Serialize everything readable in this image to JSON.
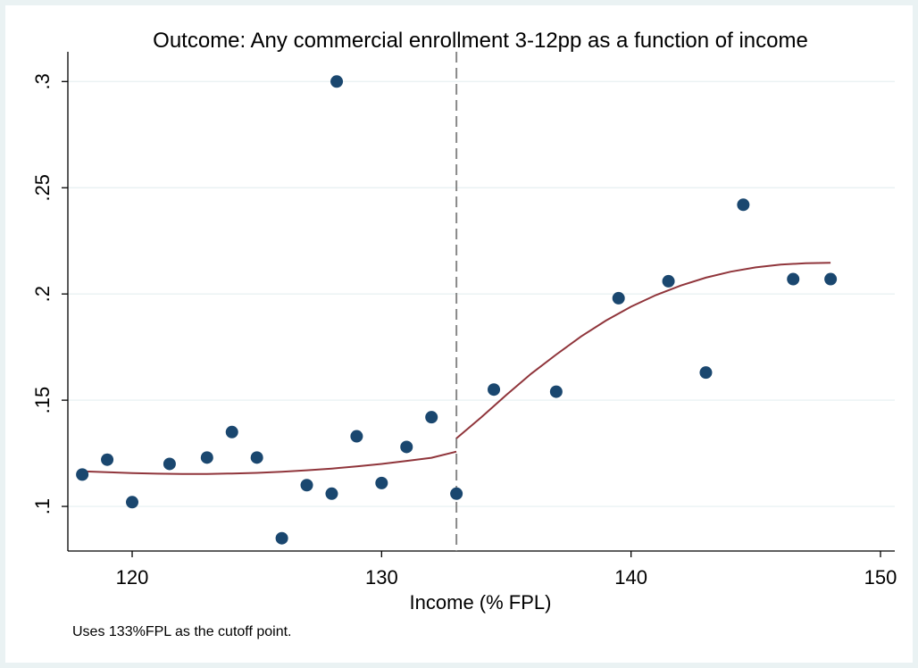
{
  "chart_data": {
    "type": "scatter",
    "title": "Outcome: Any commercial enrollment 3-12pp as a function of income",
    "xlabel": "Income (% FPL)",
    "ylabel": "",
    "note": "Uses 133%FPL as the cutoff point.",
    "xlim": [
      118,
      151
    ],
    "ylim": [
      0.079,
      0.314
    ],
    "x_ticks": [
      120,
      130,
      140,
      150
    ],
    "x_tick_labels": [
      "120",
      "130",
      "140",
      "150"
    ],
    "y_ticks": [
      0.1,
      0.15,
      0.2,
      0.25,
      0.3
    ],
    "y_tick_labels": [
      ".1",
      ".15",
      ".2",
      ".25",
      ".3"
    ],
    "grid": true,
    "cutoff": 133,
    "colors": {
      "points": "#1a476f",
      "fit": "#90353b",
      "cutoff": "#888888",
      "grid": "#eaf2f3"
    },
    "series": [
      {
        "points": [
          [
            118.0,
            0.115
          ],
          [
            119.0,
            0.122
          ],
          [
            120.0,
            0.102
          ],
          [
            121.5,
            0.12
          ],
          [
            123.0,
            0.123
          ],
          [
            124.0,
            0.135
          ],
          [
            125.0,
            0.123
          ],
          [
            126.0,
            0.085
          ],
          [
            127.0,
            0.11
          ],
          [
            128.0,
            0.106
          ],
          [
            128.2,
            0.3
          ],
          [
            129.0,
            0.133
          ],
          [
            130.0,
            0.111
          ],
          [
            131.0,
            0.128
          ],
          [
            132.0,
            0.142
          ],
          [
            133.0,
            0.106
          ],
          [
            134.5,
            0.155
          ],
          [
            137.0,
            0.154
          ],
          [
            139.5,
            0.198
          ],
          [
            141.5,
            0.206
          ],
          [
            143.0,
            0.163
          ],
          [
            144.5,
            0.242
          ],
          [
            146.5,
            0.207
          ],
          [
            148.0,
            0.207
          ]
        ]
      },
      {
        "type": "line",
        "points": [
          [
            118.0,
            0.1165
          ],
          [
            119.0,
            0.1161
          ],
          [
            120.0,
            0.1157
          ],
          [
            121.0,
            0.1154
          ],
          [
            122.0,
            0.1153
          ],
          [
            123.0,
            0.1153
          ],
          [
            124.0,
            0.1155
          ],
          [
            125.0,
            0.1158
          ],
          [
            126.0,
            0.1163
          ],
          [
            127.0,
            0.117
          ],
          [
            128.0,
            0.1178
          ],
          [
            129.0,
            0.1188
          ],
          [
            130.0,
            0.12
          ],
          [
            131.0,
            0.1214
          ],
          [
            132.0,
            0.1229
          ],
          [
            133.0,
            0.1258
          ]
        ]
      },
      {
        "type": "line",
        "points": [
          [
            133.0,
            0.132
          ],
          [
            134.0,
            0.142
          ],
          [
            135.0,
            0.1525
          ],
          [
            136.0,
            0.1625
          ],
          [
            137.0,
            0.1715
          ],
          [
            138.0,
            0.18
          ],
          [
            139.0,
            0.1875
          ],
          [
            140.0,
            0.194
          ],
          [
            141.0,
            0.1995
          ],
          [
            142.0,
            0.204
          ],
          [
            143.0,
            0.2077
          ],
          [
            144.0,
            0.2105
          ],
          [
            145.0,
            0.2125
          ],
          [
            146.0,
            0.2138
          ],
          [
            147.0,
            0.2145
          ],
          [
            148.0,
            0.2147
          ]
        ]
      }
    ]
  }
}
